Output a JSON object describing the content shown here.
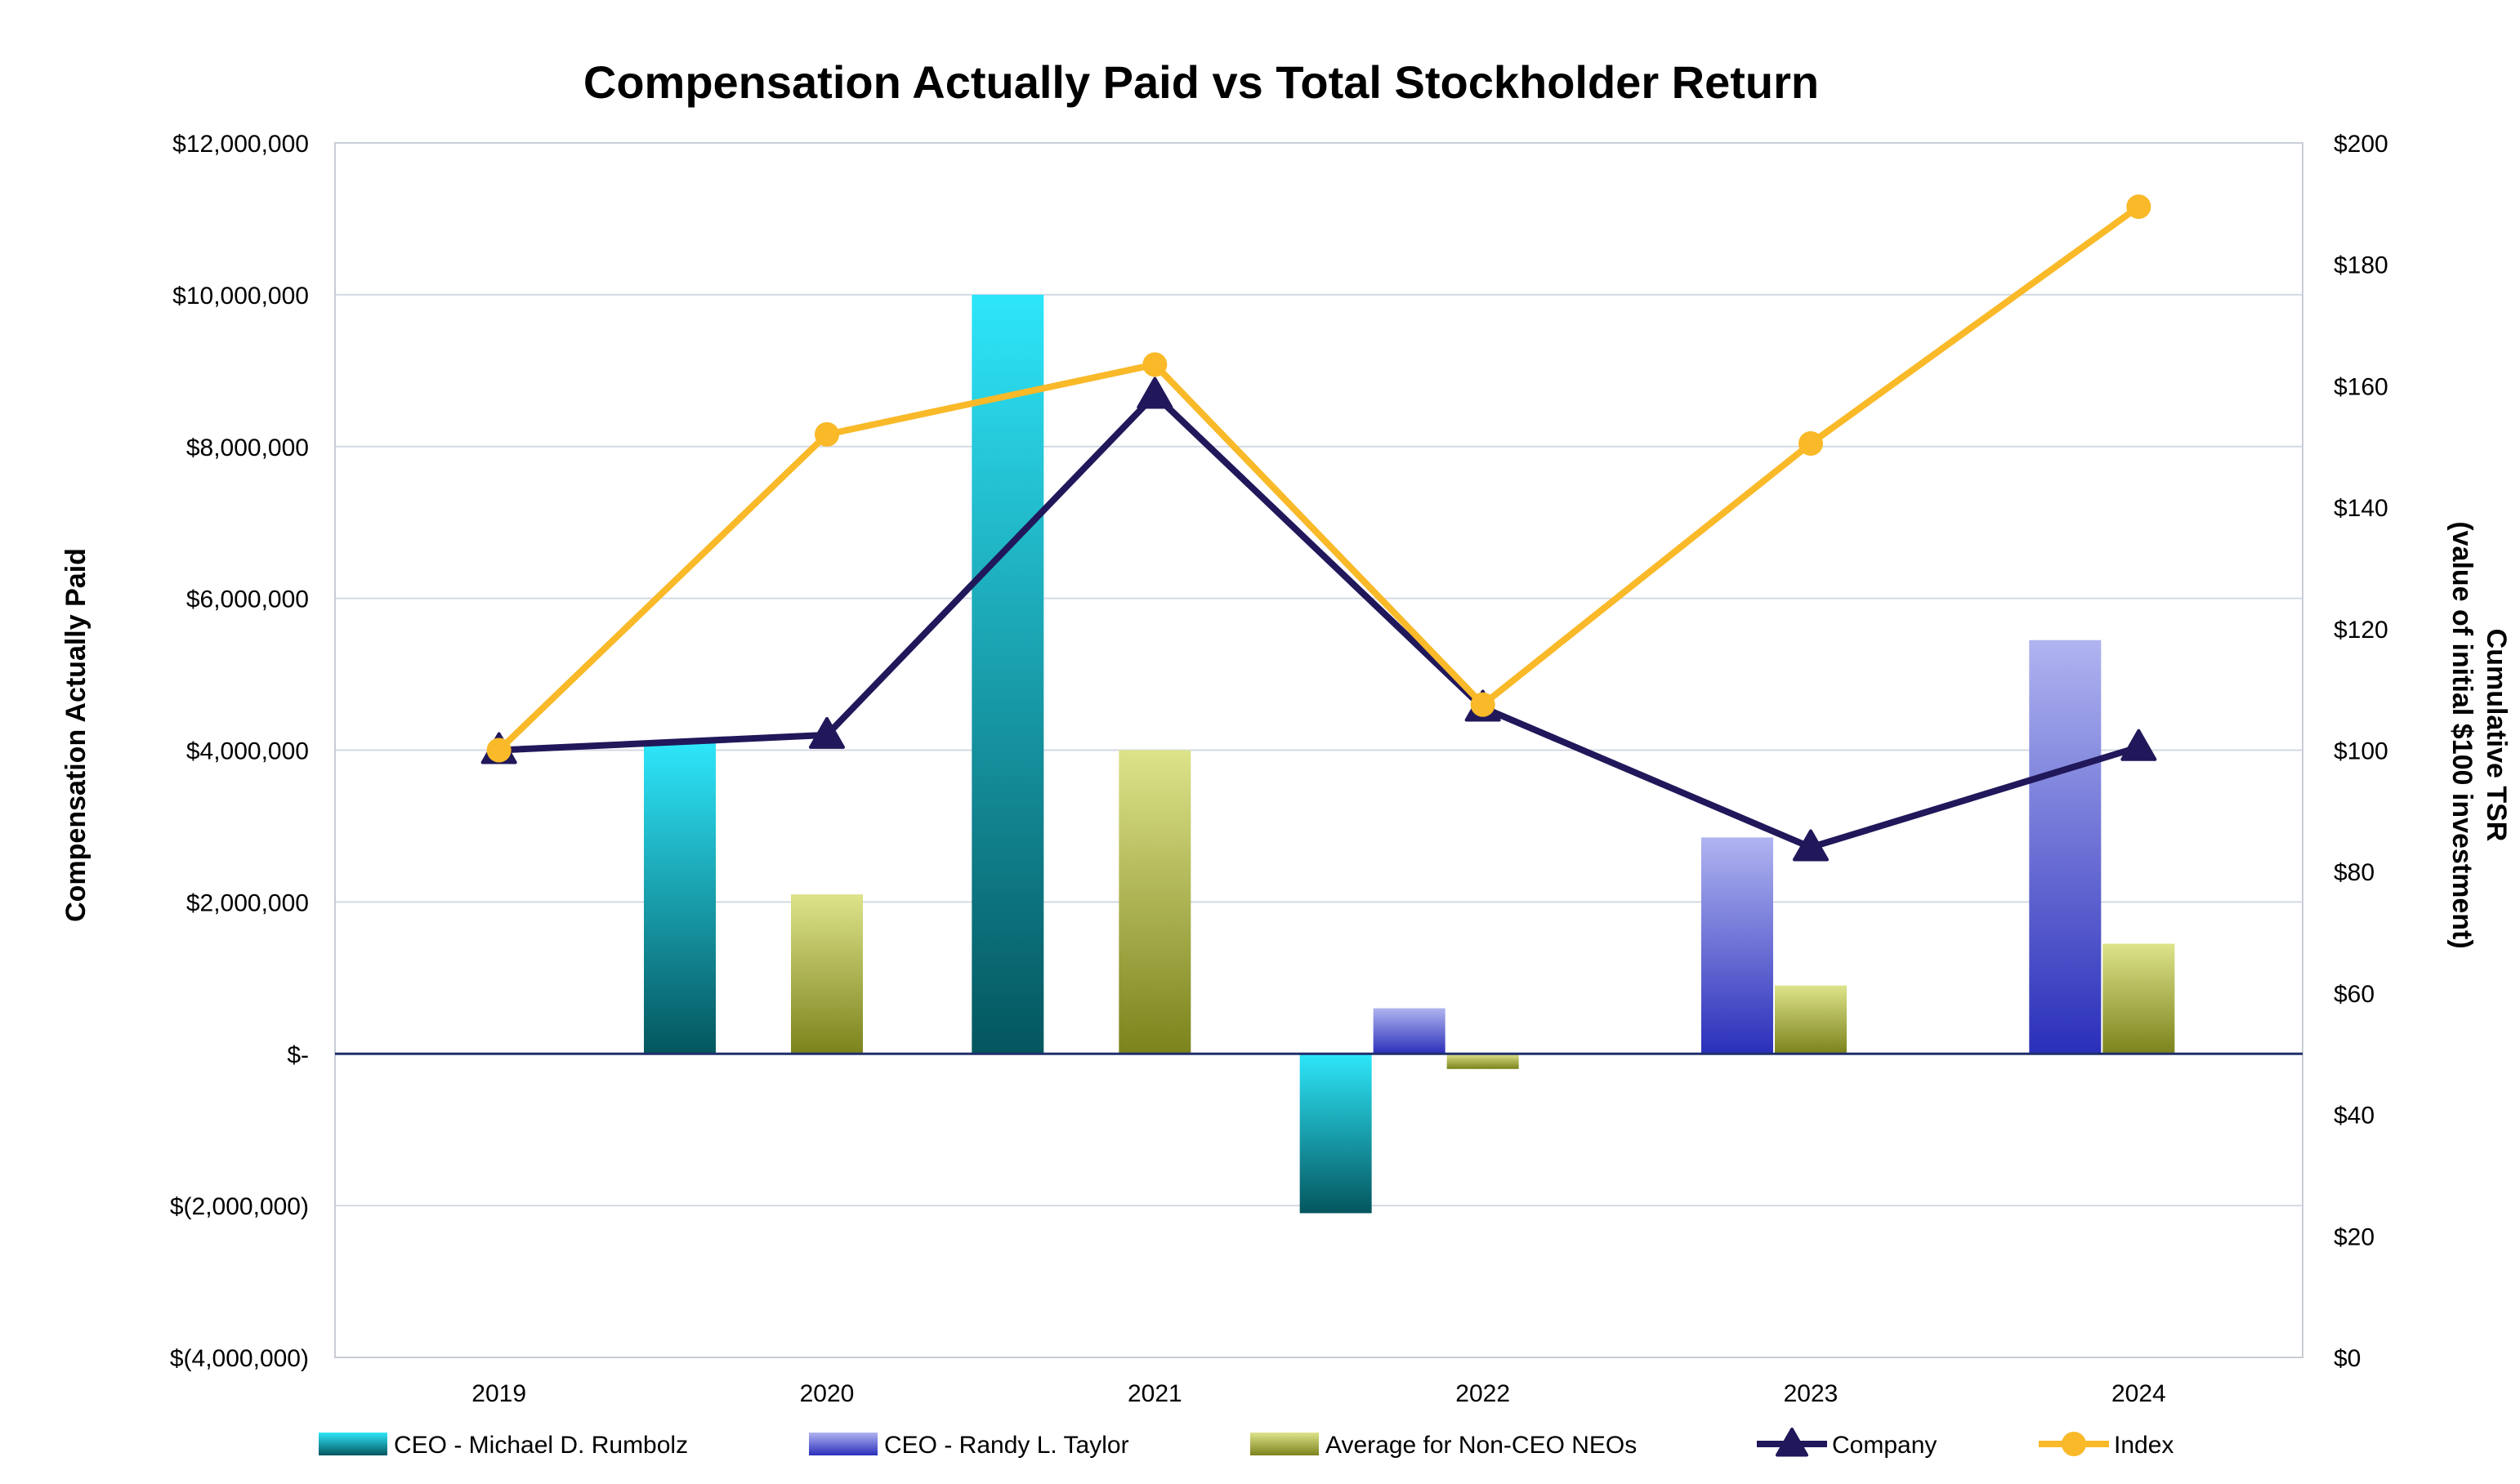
{
  "chart_data": {
    "type": "bar",
    "title": "Compensation Actually Paid vs Total Stockholder Return",
    "categories": [
      "2019",
      "2020",
      "2021",
      "2022",
      "2023",
      "2024"
    ],
    "ylabel": "Compensation Actually Paid",
    "y2label_line1": "Cumulative TSR",
    "y2label_line2": "(value of initial $100 investment)",
    "ylim": [
      -4000000,
      12000000
    ],
    "y2lim": [
      0,
      200
    ],
    "yticks": [
      {
        "value": 12000000,
        "label": "$12,000,000"
      },
      {
        "value": 10000000,
        "label": "$10,000,000"
      },
      {
        "value": 8000000,
        "label": "$8,000,000"
      },
      {
        "value": 6000000,
        "label": "$6,000,000"
      },
      {
        "value": 4000000,
        "label": "$4,000,000"
      },
      {
        "value": 2000000,
        "label": "$2,000,000"
      },
      {
        "value": 0,
        "label": "$-"
      },
      {
        "value": -2000000,
        "label": "$(2,000,000)"
      },
      {
        "value": -4000000,
        "label": "$(4,000,000)"
      }
    ],
    "y2ticks": [
      {
        "value": 200,
        "label": "$200"
      },
      {
        "value": 180,
        "label": "$180"
      },
      {
        "value": 160,
        "label": "$160"
      },
      {
        "value": 140,
        "label": "$140"
      },
      {
        "value": 120,
        "label": "$120"
      },
      {
        "value": 100,
        "label": "$100"
      },
      {
        "value": 80,
        "label": "$80"
      },
      {
        "value": 60,
        "label": "$60"
      },
      {
        "value": 40,
        "label": "$40"
      },
      {
        "value": 20,
        "label": "$20"
      },
      {
        "value": 0,
        "label": "$0"
      }
    ],
    "bar_series": [
      {
        "name": "CEO - Michael D. Rumbolz",
        "gradient": [
          "#2ee6fa",
          "#04565e"
        ],
        "values": [
          null,
          4100000,
          10000000,
          -2100000,
          null,
          null
        ]
      },
      {
        "name": "CEO - Randy L. Taylor",
        "gradient": [
          "#b0b4f0",
          "#2a2fba"
        ],
        "values": [
          null,
          null,
          null,
          600000,
          2850000,
          5450000
        ]
      },
      {
        "name": "Average for Non-CEO NEOs",
        "gradient": [
          "#dde38a",
          "#7c831c"
        ],
        "values": [
          null,
          2100000,
          4000000,
          -200000,
          900000,
          1450000
        ]
      }
    ],
    "line_series": [
      {
        "name": "Company",
        "color": "#20185a",
        "marker": "triangle",
        "values": [
          100,
          102.5,
          158.5,
          107,
          84,
          100.5
        ]
      },
      {
        "name": "Index",
        "color": "#f9b928",
        "marker": "circle",
        "values": [
          100,
          152,
          163.5,
          107.5,
          150.5,
          189.5
        ]
      }
    ],
    "colors": {
      "gridline": "#d3d9e3",
      "plot_border": "#c9cdd5",
      "zero_line": "#1f2e6b"
    },
    "legend_position": "bottom"
  }
}
